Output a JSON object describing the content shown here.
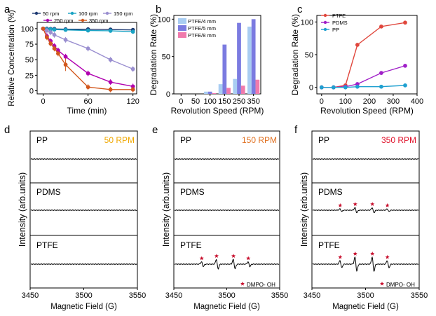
{
  "colors": {
    "rpm50": "#1f3b73",
    "rpm100": "#1aa3c4",
    "rpm150": "#9a8fd0",
    "rpm250": "#b000b0",
    "rpm350": "#d2571c",
    "ptfe4": "#a9cdf2",
    "ptfe5": "#7b7be0",
    "ptfe8": "#f07aac",
    "ptfe": "#e0463c",
    "pdms": "#a020c8",
    "pp": "#1fa0d0",
    "rpm_label_50": "#f0a800",
    "rpm_label_150": "#e07020",
    "rpm_label_350": "#e0142c",
    "star": "#c8102e"
  },
  "chart_data": [
    {
      "panel": "a",
      "type": "line",
      "xlabel": "Time (min)",
      "ylabel": "Relative Concentration (%)",
      "xlim": [
        -8,
        125
      ],
      "ylim": [
        -5,
        110
      ],
      "xticks": [
        0,
        60,
        120
      ],
      "yticks": [
        0,
        25,
        50,
        75,
        100
      ],
      "series": [
        {
          "name": "50 rpm",
          "color_key": "rpm50",
          "x": [
            0,
            5,
            10,
            15,
            30,
            60,
            90,
            120
          ],
          "y": [
            100,
            100,
            99.5,
            99.5,
            99,
            99,
            98.5,
            98
          ]
        },
        {
          "name": "100 rpm",
          "color_key": "rpm100",
          "x": [
            0,
            5,
            10,
            15,
            30,
            60,
            90,
            120
          ],
          "y": [
            100,
            99,
            99,
            98.5,
            98,
            97,
            96.5,
            95
          ]
        },
        {
          "name": "150 rpm",
          "color_key": "rpm150",
          "x": [
            0,
            5,
            10,
            15,
            30,
            60,
            90,
            120
          ],
          "y": [
            100,
            97,
            94,
            90,
            82,
            68,
            50,
            35
          ]
        },
        {
          "name": "250 rpm",
          "color_key": "rpm250",
          "x": [
            0,
            5,
            10,
            15,
            20,
            30,
            60,
            90,
            120
          ],
          "y": [
            100,
            88,
            80,
            72,
            65,
            55,
            28,
            14,
            7
          ]
        },
        {
          "name": "350 rpm",
          "color_key": "rpm350",
          "x": [
            0,
            5,
            10,
            15,
            20,
            30,
            60,
            90,
            120
          ],
          "y": [
            100,
            86,
            76,
            68,
            60,
            42,
            6,
            2,
            2
          ]
        }
      ]
    },
    {
      "panel": "b",
      "type": "bar",
      "xlabel": "Revolution Speed (RPM)",
      "ylabel": "Degradation Rate (%)",
      "categories": [
        "0",
        "50",
        "100",
        "150",
        "250",
        "350"
      ],
      "ylim": [
        0,
        105
      ],
      "yticks": [
        0,
        50,
        100
      ],
      "series": [
        {
          "name": "PTFE/4 mm",
          "color_key": "ptfe4",
          "values": [
            0,
            0,
            3,
            13,
            20,
            90
          ]
        },
        {
          "name": "PTFE/5 mm",
          "color_key": "ptfe5",
          "values": [
            0,
            0,
            3,
            66,
            95,
            100
          ]
        },
        {
          "name": "PTFE/8 mm",
          "color_key": "ptfe8",
          "values": [
            0,
            0,
            1,
            8,
            11,
            19
          ]
        }
      ]
    },
    {
      "panel": "c",
      "type": "line",
      "xlabel": "Revolution Speed (RPM)",
      "ylabel": "Degradation Rate (%)",
      "xlim": [
        -20,
        400
      ],
      "ylim": [
        -10,
        110
      ],
      "xticks": [
        0,
        100,
        200,
        300,
        400
      ],
      "yticks": [
        0,
        50,
        100
      ],
      "series": [
        {
          "name": "PTFE",
          "color_key": "ptfe",
          "x": [
            0,
            50,
            100,
            150,
            250,
            350
          ],
          "y": [
            0,
            0,
            3,
            65,
            93,
            99
          ]
        },
        {
          "name": "PDMS",
          "color_key": "pdms",
          "x": [
            0,
            50,
            100,
            150,
            250,
            350
          ],
          "y": [
            0,
            0,
            1,
            5,
            22,
            33
          ]
        },
        {
          "name": "PP",
          "color_key": "pp",
          "x": [
            0,
            50,
            100,
            150,
            250,
            350
          ],
          "y": [
            0,
            0,
            0,
            1,
            1,
            3
          ]
        }
      ]
    },
    {
      "panel": "d",
      "type": "line",
      "subtype": "EPR spectra",
      "rpm_label": "50 RPM",
      "rpm_color_key": "rpm_label_50",
      "xlabel": "Magnetic Field (G)",
      "ylabel": "Intensity (arb.units)",
      "xlim": [
        3450,
        3550
      ],
      "xticks": [
        3450,
        3500,
        3550
      ],
      "samples": [
        "PP",
        "PDMS",
        "PTFE"
      ],
      "peak_amplitudes": [
        0,
        0,
        0
      ],
      "legend_note": ""
    },
    {
      "panel": "e",
      "type": "line",
      "subtype": "EPR spectra",
      "rpm_label": "150 RPM",
      "rpm_color_key": "rpm_label_150",
      "xlabel": "Magnetic Field (G)",
      "ylabel": "Intensity (arb.units)",
      "xlim": [
        3450,
        3550
      ],
      "xticks": [
        3450,
        3500,
        3550
      ],
      "samples": [
        "PP",
        "PDMS",
        "PTFE"
      ],
      "peak_amplitudes": [
        0,
        0,
        1
      ],
      "legend_note": "DMPO- OH"
    },
    {
      "panel": "f",
      "type": "line",
      "subtype": "EPR spectra",
      "rpm_label": "350 RPM",
      "rpm_color_key": "rpm_label_350",
      "xlabel": "Magnetic Field (G)",
      "ylabel": "Intensity (arb.units)",
      "xlim": [
        3450,
        3550
      ],
      "xticks": [
        3450,
        3500,
        3550
      ],
      "samples": [
        "PP",
        "PDMS",
        "PTFE"
      ],
      "peak_amplitudes": [
        0,
        0.55,
        1.5
      ],
      "legend_note": "DMPO- OH"
    }
  ]
}
